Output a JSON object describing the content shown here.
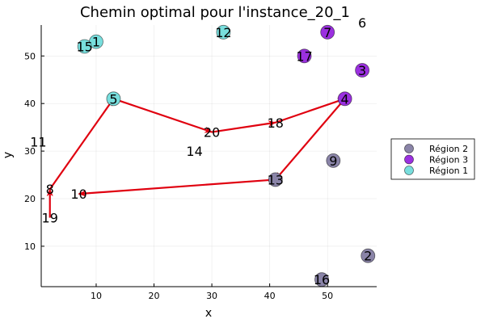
{
  "chart_data": {
    "type": "scatter",
    "title": "Chemin optimal pour l'instance_20_1",
    "xlabel": "x",
    "ylabel": "y",
    "xlim": [
      0.5,
      58.5
    ],
    "ylim": [
      1.5,
      56.5
    ],
    "xticks": [
      10,
      20,
      30,
      40,
      50
    ],
    "yticks": [
      10,
      20,
      30,
      40,
      50
    ],
    "grid": true,
    "legend_position": "outside-right",
    "series": [
      {
        "name": "Région 2",
        "color": "#8a84a8",
        "indices": [
          2,
          9,
          13,
          16
        ]
      },
      {
        "name": "Région 3",
        "color": "#9b30e0",
        "indices": [
          3,
          4,
          7,
          17
        ]
      },
      {
        "name": "Région 1",
        "color": "#78dedd",
        "indices": [
          1,
          5,
          12,
          15
        ]
      }
    ],
    "points": [
      {
        "id": "1",
        "x": 10,
        "y": 53
      },
      {
        "id": "2",
        "x": 57,
        "y": 8
      },
      {
        "id": "3",
        "x": 56,
        "y": 47
      },
      {
        "id": "4",
        "x": 53,
        "y": 41
      },
      {
        "id": "5",
        "x": 13,
        "y": 41
      },
      {
        "id": "6",
        "x": 56,
        "y": 57
      },
      {
        "id": "7",
        "x": 50,
        "y": 55
      },
      {
        "id": "8",
        "x": 2,
        "y": 22
      },
      {
        "id": "9",
        "x": 51,
        "y": 28
      },
      {
        "id": "10",
        "x": 7,
        "y": 21
      },
      {
        "id": "11",
        "x": 0,
        "y": 32
      },
      {
        "id": "12",
        "x": 32,
        "y": 55
      },
      {
        "id": "13",
        "x": 41,
        "y": 24
      },
      {
        "id": "14",
        "x": 27,
        "y": 30
      },
      {
        "id": "15",
        "x": 8,
        "y": 52
      },
      {
        "id": "16",
        "x": 49,
        "y": 3
      },
      {
        "id": "17",
        "x": 46,
        "y": 50
      },
      {
        "id": "18",
        "x": 41,
        "y": 36
      },
      {
        "id": "19",
        "x": 2,
        "y": 16
      },
      {
        "id": "20",
        "x": 30,
        "y": 34
      }
    ],
    "path": [
      "19",
      "8",
      "5",
      "20",
      "18",
      "4",
      "13",
      "10"
    ],
    "path_color": "#e0000f"
  }
}
